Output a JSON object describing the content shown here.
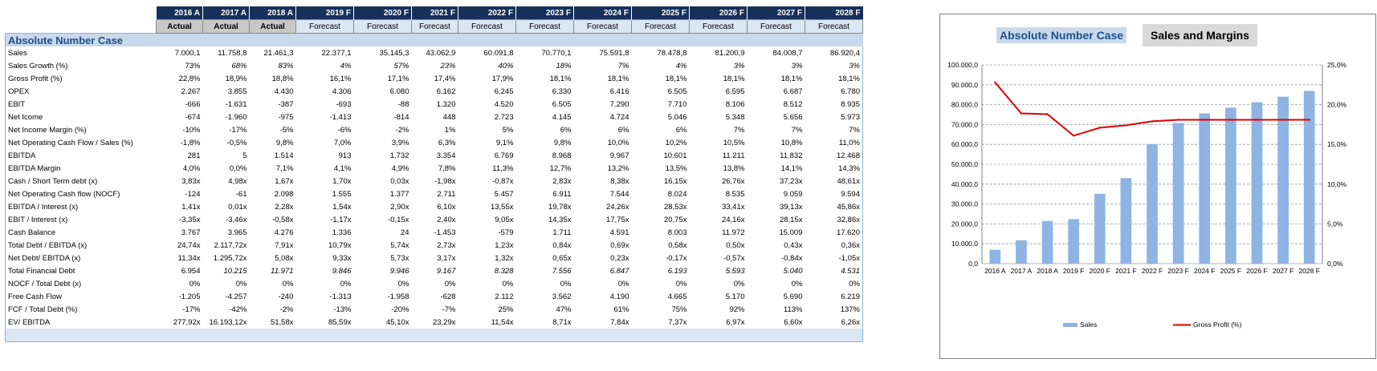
{
  "table": {
    "years": [
      "2016 A",
      "2017 A",
      "2018 A",
      "2019 F",
      "2020 F",
      "2021 F",
      "2022 F",
      "2023 F",
      "2024 F",
      "2025 F",
      "2026 F",
      "2027 F",
      "2028 F"
    ],
    "types": [
      "Actual",
      "Actual",
      "Actual",
      "Forecast",
      "Forecast",
      "Forecast",
      "Forecast",
      "Forecast",
      "Forecast",
      "Forecast",
      "Forecast",
      "Forecast",
      "Forecast"
    ],
    "section_title": "Absolute Number Case",
    "rows": [
      {
        "label": "Sales",
        "values": [
          "7.000,1",
          "11.758,8",
          "21.461,3",
          "22.377,1",
          "35.145,3",
          "43.062,9",
          "60.091,8",
          "70.770,1",
          "75.591,8",
          "78.478,8",
          "81.200,9",
          "84.008,7",
          "86.920,4"
        ]
      },
      {
        "label": "Sales Growth (%)",
        "values": [
          "73%",
          "68%",
          "83%",
          "4%",
          "57%",
          "23%",
          "40%",
          "18%",
          "7%",
          "4%",
          "3%",
          "3%",
          "3%"
        ],
        "italic": [
          false,
          true,
          true,
          true,
          true,
          true,
          true,
          true,
          true,
          true,
          true,
          true,
          true
        ]
      },
      {
        "label": "Gross Profit (%)",
        "values": [
          "22,8%",
          "18,9%",
          "18,8%",
          "16,1%",
          "17,1%",
          "17,4%",
          "17,9%",
          "18,1%",
          "18,1%",
          "18,1%",
          "18,1%",
          "18,1%",
          "18,1%"
        ]
      },
      {
        "label": "OPEX",
        "values": [
          "2.267",
          "3.855",
          "4.430",
          "4.306",
          "6.080",
          "6.162",
          "6.245",
          "6.330",
          "6.416",
          "6.505",
          "6.595",
          "6.687",
          "6.780"
        ]
      },
      {
        "label": "EBIT",
        "values": [
          "-666",
          "-1.631",
          "-387",
          "-693",
          "-88",
          "1.320",
          "4.520",
          "6.505",
          "7.290",
          "7.710",
          "8.106",
          "8.512",
          "8.935"
        ]
      },
      {
        "label": "Net Icome",
        "values": [
          "-674",
          "-1.960",
          "-975",
          "-1.413",
          "-814",
          "448",
          "2.723",
          "4.145",
          "4.724",
          "5.046",
          "5.348",
          "5.656",
          "5.973"
        ]
      },
      {
        "label": "Net Income Margin (%)",
        "values": [
          "-10%",
          "-17%",
          "-5%",
          "-6%",
          "-2%",
          "1%",
          "5%",
          "6%",
          "6%",
          "6%",
          "7%",
          "7%",
          "7%"
        ]
      },
      {
        "label": "Net Operating Cash Flow / Sales (%)",
        "values": [
          "-1,8%",
          "-0,5%",
          "9,8%",
          "7,0%",
          "3,9%",
          "6,3%",
          "9,1%",
          "9,8%",
          "10,0%",
          "10,2%",
          "10,5%",
          "10,8%",
          "11,0%"
        ]
      },
      {
        "label": "EBITDA",
        "values": [
          "281",
          "5",
          "1.514",
          "913",
          "1.732",
          "3.354",
          "6.769",
          "8.968",
          "9.967",
          "10.601",
          "11.211",
          "11.832",
          "12.468"
        ]
      },
      {
        "label": "EBITDA Margin",
        "values": [
          "4,0%",
          "0,0%",
          "7,1%",
          "4,1%",
          "4,9%",
          "7,8%",
          "11,3%",
          "12,7%",
          "13,2%",
          "13,5%",
          "13,8%",
          "14,1%",
          "14,3%"
        ]
      },
      {
        "label": "Cash / Short Term debt (x)",
        "values": [
          "3,83x",
          "4,98x",
          "1,67x",
          "1,70x",
          "0,03x",
          "-1,98x",
          "-0,87x",
          "2,83x",
          "8,38x",
          "16,15x",
          "26,76x",
          "37,23x",
          "48,61x"
        ]
      },
      {
        "label": "Net Operating Cash flow (NOCF)",
        "values": [
          "-124",
          "-61",
          "2.098",
          "1.555",
          "1.377",
          "2.711",
          "5.457",
          "6.911",
          "7.544",
          "8.024",
          "8.535",
          "9.059",
          "9.594"
        ]
      },
      {
        "label": "EBITDA / Interest (x)",
        "values": [
          "1,41x",
          "0,01x",
          "2,28x",
          "1,54x",
          "2,90x",
          "6,10x",
          "13,55x",
          "19,78x",
          "24,26x",
          "28,53x",
          "33,41x",
          "39,13x",
          "45,86x"
        ]
      },
      {
        "label": "EBIT / Interest (x)",
        "values": [
          "-3,35x",
          "-3,46x",
          "-0,58x",
          "-1,17x",
          "-0,15x",
          "2,40x",
          "9,05x",
          "14,35x",
          "17,75x",
          "20,75x",
          "24,16x",
          "28,15x",
          "32,86x"
        ]
      },
      {
        "label": "Cash Balance",
        "values": [
          "3.767",
          "3.965",
          "4.276",
          "1.336",
          "24",
          "-1.453",
          "-579",
          "1.711",
          "4.591",
          "8.003",
          "11.972",
          "15.009",
          "17.620"
        ]
      },
      {
        "label": "Total Debt / EBITDA (x)",
        "values": [
          "24,74x",
          "2.117,72x",
          "7,91x",
          "10,79x",
          "5,74x",
          "2,73x",
          "1,23x",
          "0,84x",
          "0,69x",
          "0,58x",
          "0,50x",
          "0,43x",
          "0,36x"
        ]
      },
      {
        "label": "Net Debt/ EBITDA (x)",
        "values": [
          "11,34x",
          "1.295,72x",
          "5,08x",
          "9,33x",
          "5,73x",
          "3,17x",
          "1,32x",
          "0,65x",
          "0,23x",
          "-0,17x",
          "-0,57x",
          "-0,84x",
          "-1,05x"
        ]
      },
      {
        "label": "Total Financial Debt",
        "values": [
          "6.954",
          "10.215",
          "11.971",
          "9.846",
          "9.946",
          "9.167",
          "8.328",
          "7.556",
          "6.847",
          "6.193",
          "5.593",
          "5.040",
          "4.531"
        ],
        "italic": [
          false,
          true,
          true,
          true,
          true,
          true,
          true,
          true,
          true,
          true,
          true,
          true,
          true
        ]
      },
      {
        "label": "NOCF / Total Debt (x)",
        "values": [
          "0%",
          "0%",
          "0%",
          "0%",
          "0%",
          "0%",
          "0%",
          "0%",
          "0%",
          "0%",
          "0%",
          "0%",
          "0%"
        ]
      },
      {
        "label": "Free Cash Flow",
        "values": [
          "-1.205",
          "-4.257",
          "-240",
          "-1.313",
          "-1.958",
          "-628",
          "2.112",
          "3.562",
          "4.190",
          "4.665",
          "5.170",
          "5.690",
          "6.219"
        ]
      },
      {
        "label": "FCF / Total Debt (%)",
        "values": [
          "-17%",
          "-42%",
          "-2%",
          "-13%",
          "-20%",
          "-7%",
          "25%",
          "47%",
          "61%",
          "75%",
          "92%",
          "113%",
          "137%"
        ]
      },
      {
        "label": "EV/ EBITDA",
        "values": [
          "277,92x",
          "16.193,12x",
          "51,58x",
          "85,59x",
          "45,10x",
          "23,29x",
          "11,54x",
          "8,71x",
          "7,84x",
          "7,37x",
          "6,97x",
          "6,60x",
          "6,26x"
        ]
      }
    ]
  },
  "chart_panel": {
    "case_title": "Absolute Number Case",
    "title": "Sales and Margins"
  },
  "chart_data": {
    "type": "bar",
    "categories": [
      "2016 A",
      "2017 A",
      "2018 A",
      "2019 F",
      "2020 F",
      "2021 F",
      "2022 F",
      "2023 F",
      "2024 F",
      "2025 F",
      "2026 F",
      "2027 F",
      "2028 F"
    ],
    "series": [
      {
        "name": "Sales",
        "type": "bar",
        "axis": "left",
        "color": "#8eb4e3",
        "values": [
          7000.1,
          11758.8,
          21461.3,
          22377.1,
          35145.3,
          43062.9,
          60091.8,
          70770.1,
          75591.8,
          78478.8,
          81200.9,
          84008.7,
          86920.4
        ]
      },
      {
        "name": "Gross Profit (%)",
        "type": "line",
        "axis": "right",
        "color": "#e00000",
        "values": [
          22.8,
          18.9,
          18.8,
          16.1,
          17.1,
          17.4,
          17.9,
          18.1,
          18.1,
          18.1,
          18.1,
          18.1,
          18.1
        ]
      }
    ],
    "left_axis": {
      "min": 0,
      "max": 100000,
      "step": 10000,
      "tick_labels": [
        "0,0",
        "10.000,0",
        "20.000,0",
        "30.000,0",
        "40.000,0",
        "50.000,0",
        "60.000,0",
        "70.000,0",
        "80.000,0",
        "90.000,0",
        "100.000,0"
      ]
    },
    "right_axis": {
      "min": 0,
      "max": 25,
      "step": 5,
      "tick_labels": [
        "0,0%",
        "5,0%",
        "10,0%",
        "15,0%",
        "20,0%",
        "25,0%"
      ]
    },
    "grid": true,
    "legend": "bottom"
  }
}
